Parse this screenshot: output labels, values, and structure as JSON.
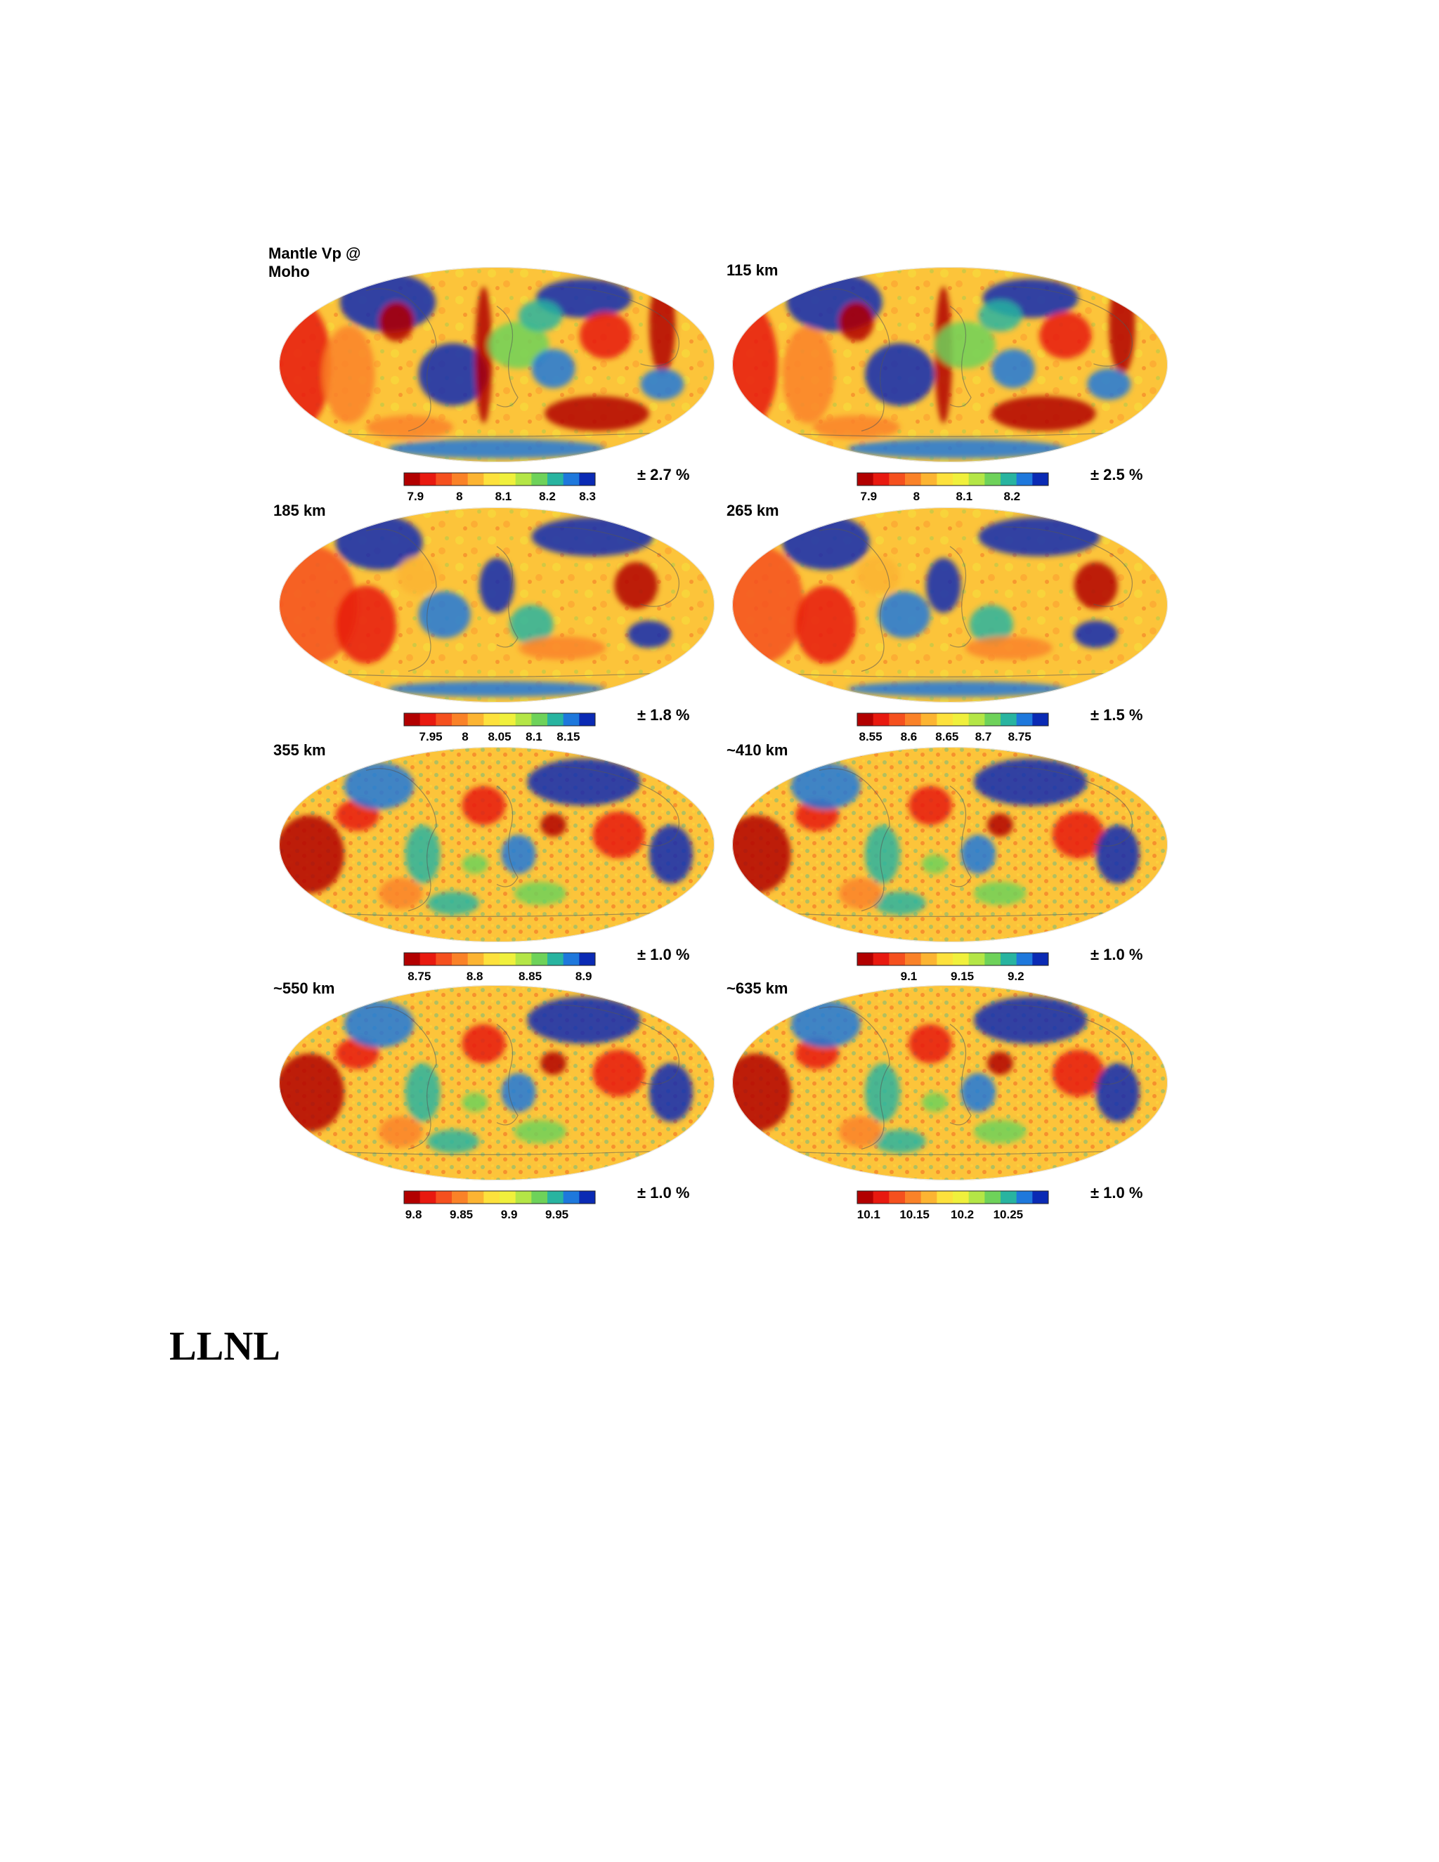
{
  "footer": {
    "label": "LLNL"
  },
  "colormap": [
    "#b20000",
    "#e8190f",
    "#f5501e",
    "#fa8228",
    "#fcb432",
    "#fde13c",
    "#f0f03c",
    "#b4e646",
    "#6ed25a",
    "#28b4a0",
    "#1e78dc",
    "#0a2ab4"
  ],
  "colorbar_segments": 12,
  "panels": [
    {
      "title_lines": [
        "Mantle Vp @",
        "Moho"
      ],
      "range_label": "± 2.7 %",
      "ticks": [
        {
          "label": "7.9",
          "pos": 0.06
        },
        {
          "label": "8",
          "pos": 0.29
        },
        {
          "label": "8.1",
          "pos": 0.52
        },
        {
          "label": "8.2",
          "pos": 0.75
        },
        {
          "label": "8.3",
          "pos": 0.96
        }
      ]
    },
    {
      "title_lines": [
        "115 km"
      ],
      "range_label": "± 2.5 %",
      "ticks": [
        {
          "label": "7.9",
          "pos": 0.06
        },
        {
          "label": "8",
          "pos": 0.31
        },
        {
          "label": "8.1",
          "pos": 0.56
        },
        {
          "label": "8.2",
          "pos": 0.81
        }
      ]
    },
    {
      "title_lines": [
        "185 km"
      ],
      "range_label": "± 1.8 %",
      "ticks": [
        {
          "label": "7.95",
          "pos": 0.14
        },
        {
          "label": "8",
          "pos": 0.32
        },
        {
          "label": "8.05",
          "pos": 0.5
        },
        {
          "label": "8.1",
          "pos": 0.68
        },
        {
          "label": "8.15",
          "pos": 0.86
        }
      ]
    },
    {
      "title_lines": [
        "265 km"
      ],
      "range_label": "± 1.5 %",
      "ticks": [
        {
          "label": "8.55",
          "pos": 0.07
        },
        {
          "label": "8.6",
          "pos": 0.27
        },
        {
          "label": "8.65",
          "pos": 0.47
        },
        {
          "label": "8.7",
          "pos": 0.66
        },
        {
          "label": "8.75",
          "pos": 0.85
        }
      ]
    },
    {
      "title_lines": [
        "355 km"
      ],
      "range_label": "± 1.0 %",
      "ticks": [
        {
          "label": "8.75",
          "pos": 0.08
        },
        {
          "label": "8.8",
          "pos": 0.37
        },
        {
          "label": "8.85",
          "pos": 0.66
        },
        {
          "label": "8.9",
          "pos": 0.94
        }
      ]
    },
    {
      "title_lines": [
        "~410 km"
      ],
      "range_label": "± 1.0 %",
      "ticks": [
        {
          "label": "9.1",
          "pos": 0.27
        },
        {
          "label": "9.15",
          "pos": 0.55
        },
        {
          "label": "9.2",
          "pos": 0.83
        }
      ]
    },
    {
      "title_lines": [
        "~550 km"
      ],
      "range_label": "± 1.0 %",
      "ticks": [
        {
          "label": "9.8",
          "pos": 0.05
        },
        {
          "label": "9.85",
          "pos": 0.3
        },
        {
          "label": "9.9",
          "pos": 0.55
        },
        {
          "label": "9.95",
          "pos": 0.8
        }
      ]
    },
    {
      "title_lines": [
        "~635 km"
      ],
      "range_label": "± 1.0 %",
      "ticks": [
        {
          "label": "10.1",
          "pos": 0.06
        },
        {
          "label": "10.15",
          "pos": 0.3
        },
        {
          "label": "10.2",
          "pos": 0.55
        },
        {
          "label": "10.25",
          "pos": 0.79
        }
      ]
    }
  ]
}
